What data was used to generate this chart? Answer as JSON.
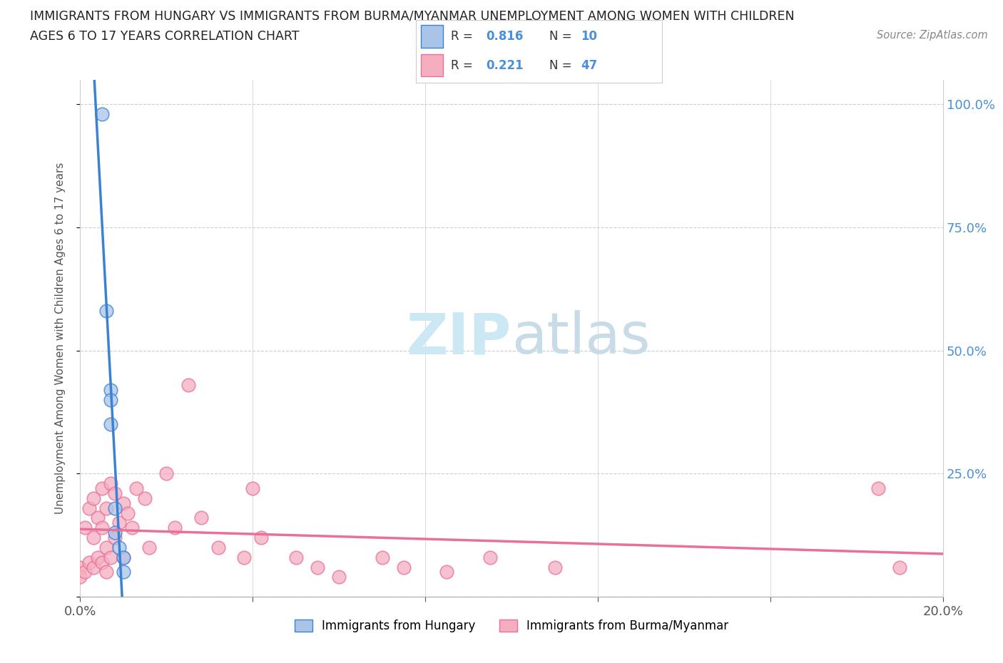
{
  "title_line1": "IMMIGRANTS FROM HUNGARY VS IMMIGRANTS FROM BURMA/MYANMAR UNEMPLOYMENT AMONG WOMEN WITH CHILDREN",
  "title_line2": "AGES 6 TO 17 YEARS CORRELATION CHART",
  "source_text": "Source: ZipAtlas.com",
  "ylabel": "Unemployment Among Women with Children Ages 6 to 17 years",
  "xlim": [
    0.0,
    0.2
  ],
  "ylim": [
    0.0,
    1.05
  ],
  "hungary_color": "#aac4e8",
  "burma_color": "#f5aec0",
  "hungary_line_color": "#3a82d4",
  "burma_line_color": "#e8709a",
  "watermark_color": "#cde8f5",
  "legend_R_hungary": "0.816",
  "legend_N_hungary": "10",
  "legend_R_burma": "0.221",
  "legend_N_burma": "47",
  "legend_text_color": "#4a90d9",
  "background_color": "#ffffff",
  "grid_color": "#cccccc",
  "hungary_x": [
    0.005,
    0.006,
    0.007,
    0.007,
    0.007,
    0.008,
    0.008,
    0.009,
    0.01,
    0.01
  ],
  "hungary_y": [
    0.98,
    0.58,
    0.42,
    0.4,
    0.35,
    0.18,
    0.13,
    0.1,
    0.08,
    0.05
  ],
  "burma_x": [
    0.0,
    0.0,
    0.001,
    0.001,
    0.002,
    0.002,
    0.003,
    0.003,
    0.003,
    0.004,
    0.004,
    0.005,
    0.005,
    0.005,
    0.006,
    0.006,
    0.006,
    0.007,
    0.007,
    0.008,
    0.008,
    0.009,
    0.01,
    0.01,
    0.011,
    0.012,
    0.013,
    0.015,
    0.016,
    0.02,
    0.022,
    0.025,
    0.028,
    0.032,
    0.038,
    0.04,
    0.042,
    0.05,
    0.055,
    0.06,
    0.07,
    0.075,
    0.085,
    0.095,
    0.11,
    0.185,
    0.19
  ],
  "burma_y": [
    0.06,
    0.04,
    0.14,
    0.05,
    0.18,
    0.07,
    0.2,
    0.12,
    0.06,
    0.16,
    0.08,
    0.22,
    0.14,
    0.07,
    0.18,
    0.1,
    0.05,
    0.23,
    0.08,
    0.21,
    0.12,
    0.15,
    0.19,
    0.08,
    0.17,
    0.14,
    0.22,
    0.2,
    0.1,
    0.25,
    0.14,
    0.43,
    0.16,
    0.1,
    0.08,
    0.22,
    0.12,
    0.08,
    0.06,
    0.04,
    0.08,
    0.06,
    0.05,
    0.08,
    0.06,
    0.22,
    0.06
  ]
}
